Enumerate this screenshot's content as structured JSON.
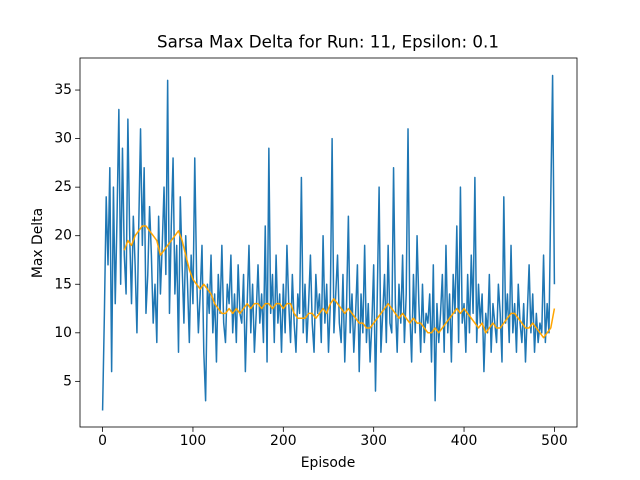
{
  "chart_data": {
    "type": "line",
    "title": "Sarsa Max Delta for Run: 11, Epsilon: 0.1",
    "x_label": "Episode",
    "y_label": "Max Delta",
    "xlim": [
      -25,
      525
    ],
    "ylim": [
      0.3,
      38.3
    ],
    "xticks": [
      0,
      100,
      200,
      300,
      400,
      500
    ],
    "yticks": [
      5,
      10,
      15,
      20,
      25,
      30,
      35
    ],
    "series": [
      {
        "color": "#1f77b4",
        "x": [
          0,
          2,
          4,
          6,
          8,
          10,
          12,
          14,
          16,
          18,
          20,
          22,
          24,
          26,
          28,
          30,
          32,
          34,
          36,
          38,
          40,
          42,
          44,
          46,
          48,
          50,
          52,
          54,
          56,
          58,
          60,
          62,
          64,
          66,
          68,
          70,
          72,
          74,
          76,
          78,
          80,
          82,
          84,
          86,
          88,
          90,
          92,
          94,
          96,
          98,
          100,
          102,
          104,
          106,
          108,
          110,
          112,
          114,
          116,
          118,
          120,
          122,
          124,
          126,
          128,
          130,
          132,
          134,
          136,
          138,
          140,
          142,
          144,
          146,
          148,
          150,
          152,
          154,
          156,
          158,
          160,
          162,
          164,
          166,
          168,
          170,
          172,
          174,
          176,
          178,
          180,
          182,
          184,
          186,
          188,
          190,
          192,
          194,
          196,
          198,
          200,
          202,
          204,
          206,
          208,
          210,
          212,
          214,
          216,
          218,
          220,
          222,
          224,
          226,
          228,
          230,
          232,
          234,
          236,
          238,
          240,
          242,
          244,
          246,
          248,
          250,
          252,
          254,
          256,
          258,
          260,
          262,
          264,
          266,
          268,
          270,
          272,
          274,
          276,
          278,
          280,
          282,
          284,
          286,
          288,
          290,
          292,
          294,
          296,
          298,
          300,
          302,
          304,
          306,
          308,
          310,
          312,
          314,
          316,
          318,
          320,
          322,
          324,
          326,
          328,
          330,
          332,
          334,
          336,
          338,
          340,
          342,
          344,
          346,
          348,
          350,
          352,
          354,
          356,
          358,
          360,
          362,
          364,
          366,
          368,
          370,
          372,
          374,
          376,
          378,
          380,
          382,
          384,
          386,
          388,
          390,
          392,
          394,
          396,
          398,
          400,
          402,
          404,
          406,
          408,
          410,
          412,
          414,
          416,
          418,
          420,
          422,
          424,
          426,
          428,
          430,
          432,
          434,
          436,
          438,
          440,
          442,
          444,
          446,
          448,
          450,
          452,
          454,
          456,
          458,
          460,
          462,
          464,
          466,
          468,
          470,
          472,
          474,
          476,
          478,
          480,
          482,
          484,
          486,
          488,
          490,
          492,
          494,
          496,
          498,
          500
        ],
        "values": [
          2,
          12,
          24,
          17,
          27,
          6,
          25,
          13,
          22,
          33,
          15,
          29,
          18,
          14,
          32,
          20,
          13,
          22,
          17,
          10,
          21,
          31,
          19,
          27,
          12,
          16,
          23,
          18,
          11,
          15,
          9,
          22,
          14,
          19,
          25,
          16,
          36,
          12,
          21,
          28,
          14,
          19,
          8,
          24,
          17,
          11,
          20,
          15,
          9,
          18,
          13,
          28,
          16,
          10,
          14,
          19,
          8,
          3,
          15,
          12,
          18,
          10,
          14,
          7,
          16,
          12,
          19,
          11,
          9,
          15,
          13,
          18,
          10,
          14,
          9,
          17,
          12,
          11,
          16,
          6,
          13,
          19,
          10,
          15,
          8,
          12,
          17,
          11,
          14,
          9,
          21,
          7,
          29,
          12,
          16,
          9,
          18,
          11,
          14,
          8,
          15,
          10,
          19,
          13,
          9,
          16,
          11,
          8,
          14,
          12,
          26,
          10,
          15,
          9,
          13,
          18,
          11,
          8,
          16,
          12,
          14,
          9,
          20,
          11,
          15,
          8,
          13,
          30,
          10,
          14,
          18,
          11,
          9,
          16,
          7,
          13,
          22,
          10,
          14,
          8,
          12,
          17,
          6,
          14,
          10,
          19,
          9,
          13,
          7,
          11,
          17,
          4,
          14,
          25,
          8,
          12,
          16,
          9,
          19,
          11,
          10,
          27,
          13,
          8,
          15,
          11,
          18,
          9,
          14,
          31,
          12,
          7,
          16,
          10,
          20,
          13,
          8,
          15,
          9,
          12,
          11,
          14,
          7,
          17,
          3,
          13,
          9,
          12,
          16,
          8,
          19,
          10,
          14,
          7,
          16,
          12,
          21,
          9,
          25,
          11,
          13,
          8,
          16,
          10,
          18,
          12,
          26,
          9,
          15,
          11,
          14,
          6,
          12,
          10,
          16,
          8,
          13,
          11,
          9,
          15,
          12,
          7,
          24,
          11,
          14,
          9,
          19,
          10,
          13,
          8,
          15,
          11,
          9,
          13,
          7,
          12,
          17,
          10,
          14,
          8,
          12,
          9,
          11,
          10,
          18,
          9,
          13,
          10,
          24,
          36.5,
          15
        ]
      },
      {
        "color": "#ffa500",
        "x": [
          24,
          28,
          32,
          36,
          40,
          44,
          48,
          52,
          56,
          60,
          64,
          68,
          72,
          76,
          80,
          84,
          88,
          92,
          96,
          100,
          104,
          108,
          112,
          116,
          120,
          124,
          128,
          132,
          136,
          140,
          144,
          148,
          152,
          156,
          160,
          164,
          168,
          172,
          176,
          180,
          184,
          188,
          192,
          196,
          200,
          204,
          208,
          212,
          216,
          220,
          224,
          228,
          232,
          236,
          240,
          244,
          248,
          252,
          256,
          260,
          264,
          268,
          272,
          276,
          280,
          284,
          288,
          292,
          296,
          300,
          304,
          308,
          312,
          316,
          320,
          324,
          328,
          332,
          336,
          340,
          344,
          348,
          352,
          356,
          360,
          364,
          368,
          372,
          376,
          380,
          384,
          388,
          392,
          396,
          400,
          404,
          408,
          412,
          416,
          420,
          424,
          428,
          432,
          436,
          440,
          444,
          448,
          452,
          456,
          460,
          464,
          468,
          472,
          476,
          480,
          484,
          488,
          492,
          496,
          500
        ],
        "values": [
          18.5,
          19.5,
          19,
          20,
          20.5,
          21,
          21,
          20.5,
          20,
          19.5,
          18,
          18.5,
          19,
          19.5,
          20,
          20.5,
          19.5,
          18,
          16.5,
          15.5,
          15,
          14.5,
          15,
          14.5,
          14,
          13,
          12.5,
          12,
          12,
          12.5,
          12,
          12.5,
          12,
          12.5,
          13,
          12.5,
          13,
          13,
          12.5,
          13,
          13,
          12.5,
          13,
          13,
          12.5,
          13,
          13,
          12,
          11.5,
          11.5,
          11.5,
          12,
          12,
          11.5,
          12,
          12.5,
          12,
          13,
          13.5,
          13,
          12.5,
          12,
          12.5,
          12,
          11.5,
          11,
          11,
          10.5,
          10.5,
          11,
          11.5,
          12,
          12.5,
          13,
          12.5,
          12,
          11.5,
          12,
          11.5,
          11,
          11.5,
          11,
          11,
          10.5,
          10,
          10,
          10.5,
          10,
          10.5,
          11,
          11.5,
          12,
          12.5,
          12,
          12.5,
          12,
          11.5,
          11,
          10.5,
          11,
          10,
          10.5,
          11,
          10.5,
          10.5,
          11,
          11.5,
          12,
          12,
          11.5,
          11,
          10.5,
          10.5,
          11,
          10.5,
          10,
          9.5,
          10,
          10.5,
          12.5
        ]
      }
    ]
  }
}
